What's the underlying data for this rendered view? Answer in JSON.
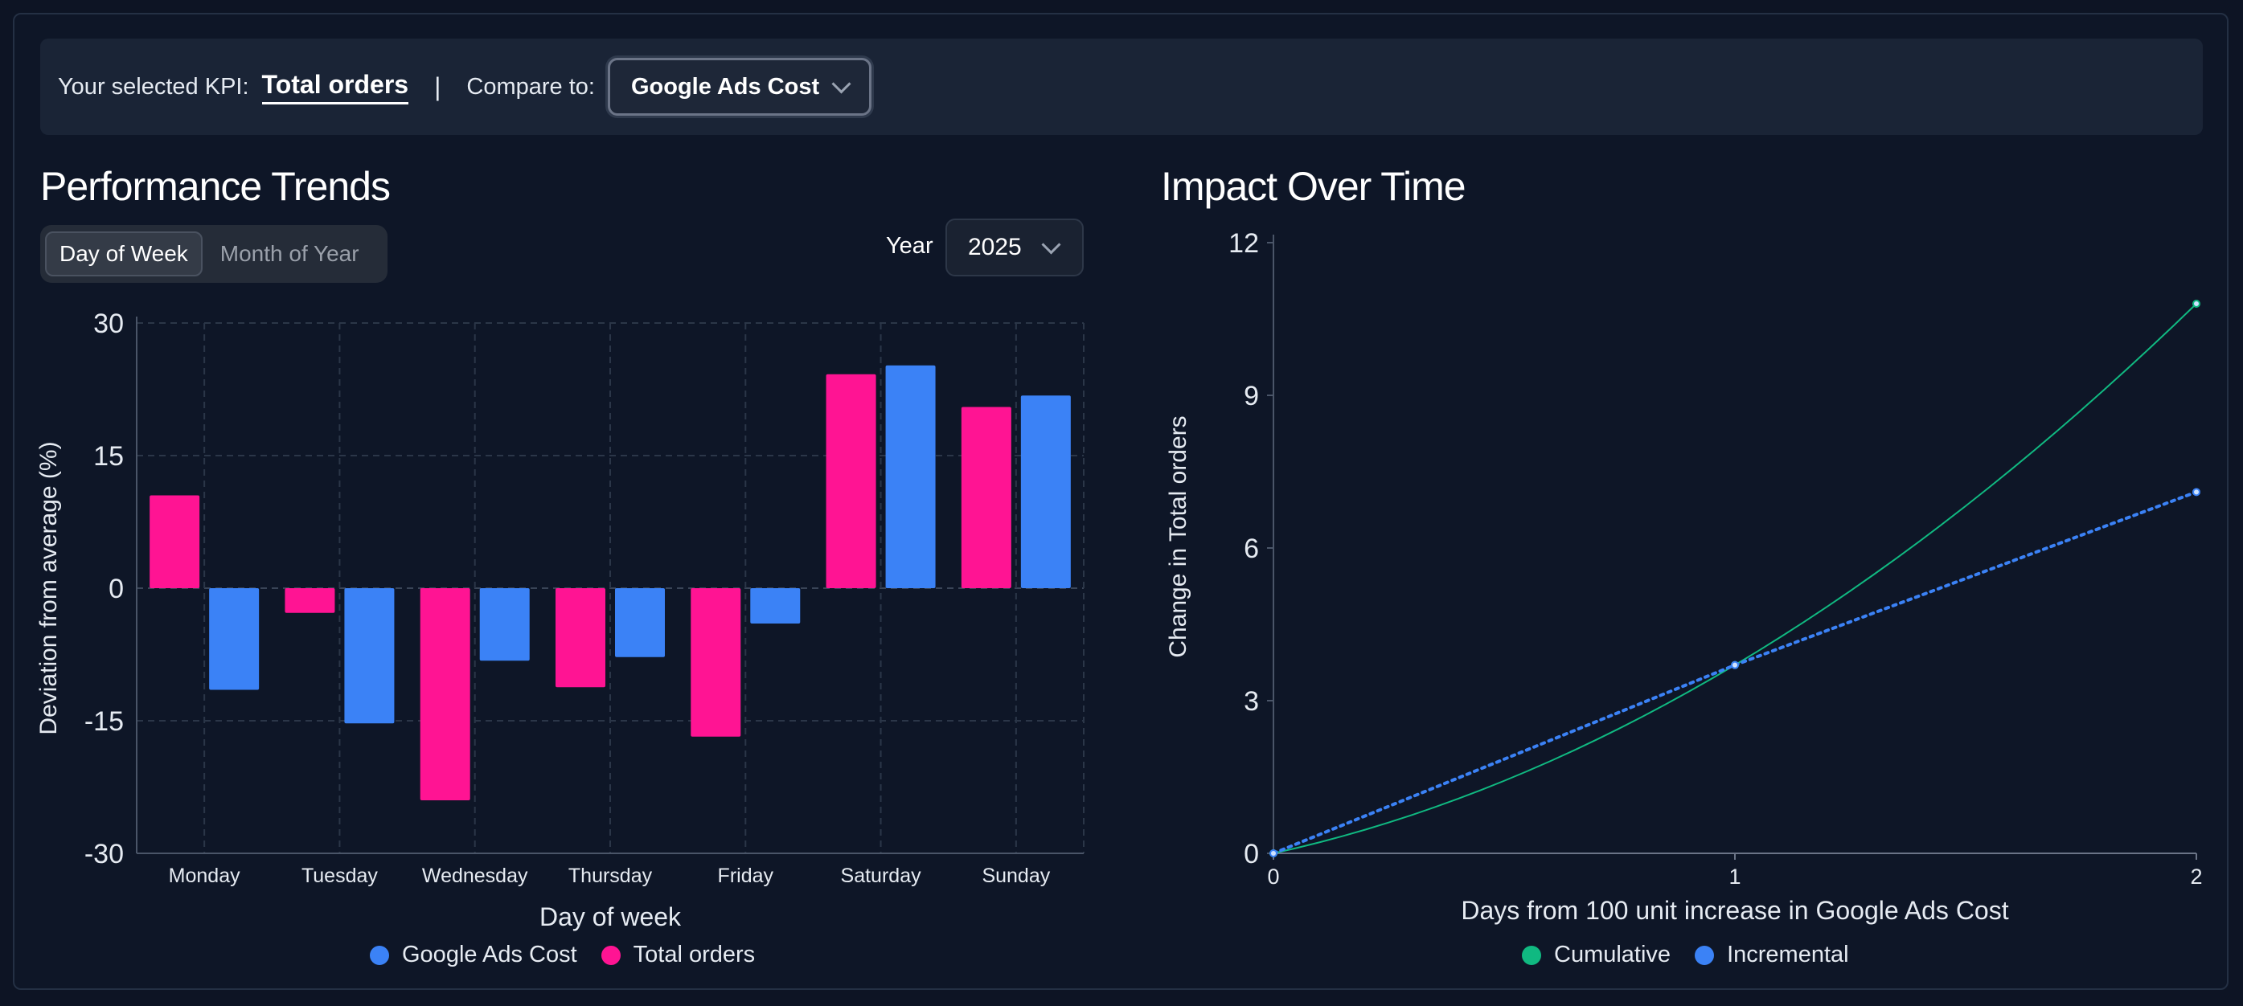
{
  "kpi_bar": {
    "selected_label": "Your selected KPI:",
    "selected_value": "Total orders",
    "separator": "|",
    "compare_label": "Compare to:",
    "compare_value": "Google Ads Cost"
  },
  "performance": {
    "title": "Performance Trends",
    "toggle": [
      "Day of Week",
      "Month of Year"
    ],
    "active_toggle": "Day of Week",
    "year_label": "Year",
    "year_value": "2025"
  },
  "impact": {
    "title": "Impact Over Time"
  },
  "colors": {
    "pink": "#ff1493",
    "blue": "#3b82f6",
    "green": "#10b981",
    "incremental": "#3b82f6"
  },
  "chart_data": [
    {
      "type": "bar",
      "title": "Performance Trends",
      "xlabel": "Day of week",
      "ylabel": "Deviation from average (%)",
      "ylim": [
        -30,
        30
      ],
      "yticks": [
        30,
        15,
        0,
        -15,
        -30
      ],
      "categories": [
        "Monday",
        "Tuesday",
        "Wednesday",
        "Thursday",
        "Friday",
        "Saturday",
        "Sunday"
      ],
      "series": [
        {
          "name": "Total orders",
          "color": "#ff1493",
          "values": [
            10.5,
            -2.8,
            -24,
            -11.2,
            -16.8,
            24.2,
            20.5
          ]
        },
        {
          "name": "Google Ads Cost",
          "color": "#3b82f6",
          "values": [
            -11.5,
            -15.3,
            -8.2,
            -7.8,
            -4.0,
            25.2,
            21.8
          ]
        }
      ],
      "legend": [
        {
          "name": "Google Ads Cost",
          "color": "#3b82f6"
        },
        {
          "name": "Total orders",
          "color": "#ff1493"
        }
      ],
      "legend_position": "bottom",
      "grid": true
    },
    {
      "type": "line",
      "title": "Impact Over Time",
      "xlabel": "Days from 100 unit increase in Google Ads Cost",
      "ylabel": "Change in Total orders",
      "xlim": [
        0,
        2
      ],
      "ylim": [
        0,
        12
      ],
      "xticks": [
        0,
        1,
        2
      ],
      "yticks": [
        12,
        9,
        6,
        3,
        0
      ],
      "series": [
        {
          "name": "Cumulative",
          "color": "#10b981",
          "x": [
            0,
            1,
            2
          ],
          "y": [
            0,
            3.7,
            10.8
          ]
        },
        {
          "name": "Incremental",
          "color": "#3b82f6",
          "x": [
            0,
            1,
            2
          ],
          "y": [
            0,
            3.7,
            7.1
          ]
        }
      ],
      "legend_position": "bottom",
      "grid": false
    }
  ]
}
